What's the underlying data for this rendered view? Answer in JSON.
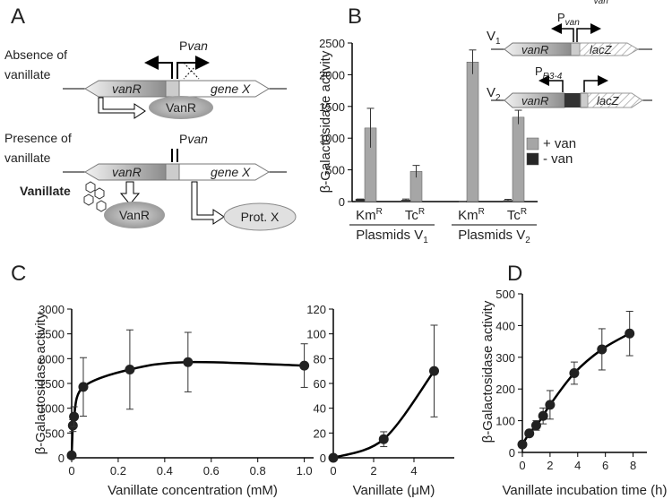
{
  "panel_a": {
    "label": "A",
    "absence": [
      "Absence of",
      "vanillate"
    ],
    "presence": [
      "Presence of",
      "vanillate"
    ],
    "promoter_1": {
      "text": "P",
      "suffix": "van"
    },
    "promoter_2": {
      "text": "P",
      "suffix": "van"
    },
    "gene_1": "vanR",
    "gene_2": "gene X",
    "gene_3": "vanR",
    "gene_4": "gene X",
    "repressor_1": "VanR",
    "repressor_2": "VanR",
    "inducer": "Vanillate",
    "product": "Prot. X"
  },
  "chart_data": [
    {
      "type": "bar",
      "label": "B",
      "ylabel": "β-Galactosidase activity",
      "categories": [
        {
          "text": "Km",
          "sup": "R"
        },
        {
          "text": "Tc",
          "sup": "R"
        },
        {
          "text": "Km",
          "sup": "R"
        },
        {
          "text": "Tc",
          "sup": "R"
        }
      ],
      "groups": [
        {
          "text": "Plasmids V",
          "sub": "1"
        },
        {
          "text": "Plasmids V",
          "sub": "2"
        }
      ],
      "series": [
        {
          "name": "+ van",
          "color": "#a6a6a6",
          "values": [
            1160,
            475,
            2200,
            1330
          ],
          "errors": [
            310,
            95,
            190,
            110
          ]
        },
        {
          "name": "- van",
          "color": "#262626",
          "values": [
            40,
            25,
            0,
            20
          ],
          "errors": [
            0,
            15,
            0,
            15
          ]
        }
      ],
      "ylim": [
        0,
        2500
      ],
      "yticks": [
        0,
        500,
        1000,
        1500,
        2000,
        2500
      ],
      "legend": "right",
      "inset": [
        {
          "name": {
            "text": "V",
            "sub": "1"
          },
          "promoters": [
            {
              "text": "P",
              "sub": "van"
            }
          ],
          "genes": [
            "vanR",
            "lacZ"
          ]
        },
        {
          "name": {
            "text": "V",
            "sub": "2"
          },
          "promoters": [
            {
              "text": "P",
              "sub": "R3-4"
            },
            {
              "text": "P",
              "sub": "van"
            }
          ],
          "genes": [
            "vanR",
            "lacZ"
          ]
        }
      ]
    },
    {
      "type": "line",
      "label": "C",
      "ylabel": "β-Galactosidase activity",
      "xlabel": "Vanillate concentration (mM)",
      "x": [
        0,
        0.005,
        0.01,
        0.05,
        0.25,
        0.5,
        1.0
      ],
      "values": [
        50,
        650,
        830,
        1430,
        1780,
        1930,
        1860
      ],
      "errors": [
        20,
        120,
        200,
        590,
        800,
        600,
        440
      ],
      "xlim": [
        0,
        1.04
      ],
      "xticks": [
        0,
        0.2,
        0.4,
        0.6,
        0.8,
        {
          "value": 1,
          "label": "1.0"
        }
      ],
      "ylim": [
        0,
        3000
      ],
      "yticks": [
        0,
        500,
        1000,
        1500,
        2000,
        2500,
        3000
      ]
    },
    {
      "type": "line",
      "xlabel": "Vanillate (μM)",
      "x": [
        0,
        2.5,
        5
      ],
      "values": [
        0,
        15,
        70
      ],
      "errors": [
        0,
        6,
        37
      ],
      "xlim": [
        0,
        6
      ],
      "xticks": [
        0,
        2,
        4
      ],
      "ylim": [
        0,
        120
      ],
      "yticks": [
        0,
        20,
        40,
        60,
        80,
        100,
        120
      ]
    },
    {
      "type": "line",
      "label": "D",
      "ylabel": "β-Galactosidase activity",
      "xlabel": "Vanillate incubation time (h)",
      "x": [
        0,
        0.5,
        1,
        1.5,
        2,
        3.75,
        5.75,
        7.75
      ],
      "values": [
        25,
        60,
        85,
        115,
        150,
        250,
        325,
        375
      ],
      "errors": [
        0,
        0,
        15,
        25,
        45,
        35,
        65,
        70
      ],
      "xlim": [
        0,
        9
      ],
      "xticks": [
        0,
        2,
        4,
        6,
        8
      ],
      "ylim": [
        0,
        500
      ],
      "yticks": [
        0,
        100,
        200,
        300,
        400,
        500
      ]
    }
  ]
}
